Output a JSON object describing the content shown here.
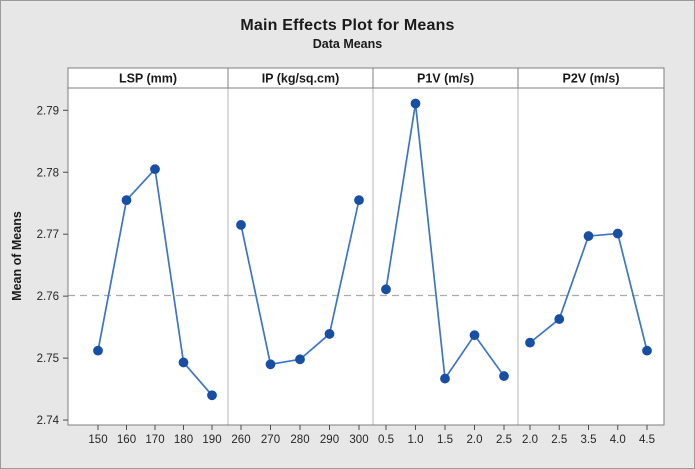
{
  "chart_data": {
    "type": "line",
    "title": "Main Effects Plot for Means",
    "subtitle": "Data Means",
    "ylabel": "Mean of Means",
    "yticks": [
      "2.74",
      "2.75",
      "2.76",
      "2.77",
      "2.78",
      "2.79"
    ],
    "ylim": [
      2.7392,
      2.7936
    ],
    "reference_line": 2.7601,
    "grid": false,
    "legend": "none",
    "panels": [
      {
        "label": "LSP (mm)",
        "categories": [
          "150",
          "160",
          "170",
          "180",
          "190"
        ],
        "values": [
          2.7512,
          2.7755,
          2.7805,
          2.7493,
          2.744
        ]
      },
      {
        "label": "IP (kg/sq.cm)",
        "categories": [
          "260",
          "270",
          "280",
          "290",
          "300"
        ],
        "values": [
          2.7715,
          2.749,
          2.7498,
          2.7539,
          2.7755
        ]
      },
      {
        "label": "P1V (m/s)",
        "categories": [
          "0.5",
          "1.0",
          "1.5",
          "2.0",
          "2.5"
        ],
        "values": [
          2.7611,
          2.7911,
          2.7467,
          2.7537,
          2.7471
        ]
      },
      {
        "label": "P2V (m/s)",
        "categories": [
          "2.0",
          "2.5",
          "3.5",
          "4.0",
          "4.5"
        ],
        "values": [
          2.7525,
          2.7563,
          2.7697,
          2.7701,
          2.7512
        ]
      }
    ],
    "colors": {
      "line": "#3d74c4",
      "marker": "#184fa5",
      "reference": "#ababab",
      "panel_border": "#7f7f7f",
      "divider": "#b4b4b4",
      "tick_text": "#262626",
      "background": "#e7e7e7",
      "plot_background": "#ffffff"
    }
  }
}
